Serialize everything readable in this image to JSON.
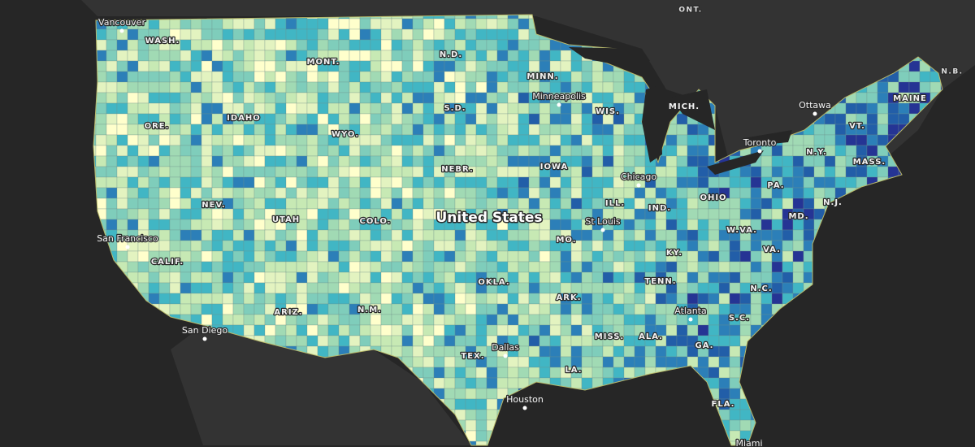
{
  "places": [
    "ONT.",
    "N.B.",
    "Vancouver",
    "WASH.",
    "MONT.",
    "N.D.",
    "MINN.",
    "ORE.",
    "IDAHO",
    "WYO.",
    "S.D.",
    "Minneapolis",
    "WIS.",
    "MICH.",
    "Ottawa",
    "MAINE",
    "VT.",
    "Toronto",
    "N.Y.",
    "MASS.",
    "IOWA",
    "NEBR.",
    "Chicago",
    "PA.",
    "N.J.",
    "NEV.",
    "UTAH",
    "COLO.",
    "United States",
    "St Louis",
    "ILL.",
    "IND.",
    "OHIO",
    "MD.",
    "W.VA.",
    "San Francisco",
    "CALIF.",
    "MO.",
    "KY.",
    "VA.",
    "OKLA.",
    "TENN.",
    "N.C.",
    "ARK.",
    "Atlanta",
    "ARIZ.",
    "N.M.",
    "S.C.",
    "San Diego",
    "MISS.",
    "ALA.",
    "Dallas",
    "TEX.",
    "GA.",
    "LA.",
    "Houston",
    "FLA.",
    "Miami"
  ]
}
